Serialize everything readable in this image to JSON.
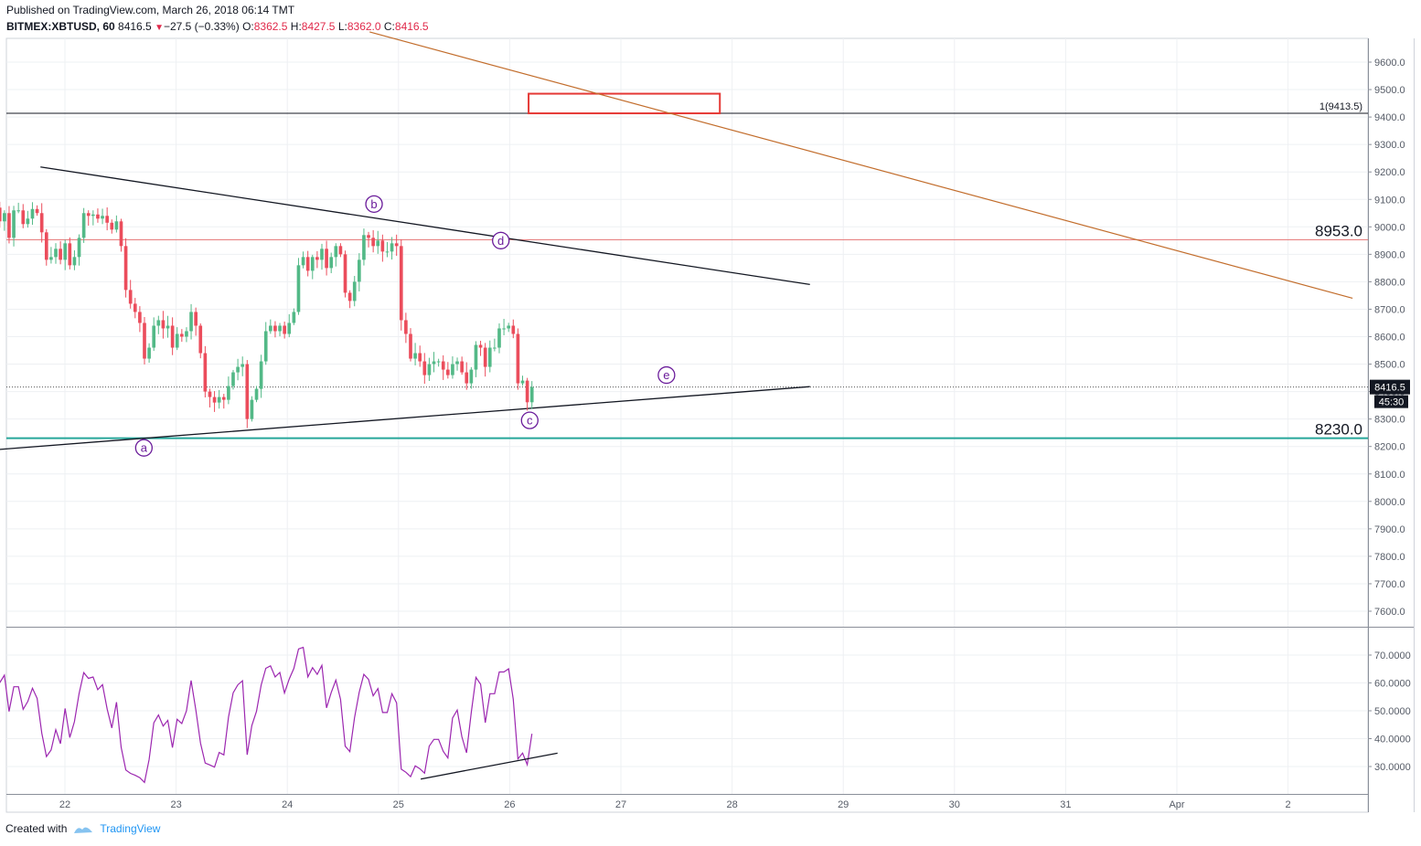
{
  "header": {
    "published": "Published on TradingView.com, March 26, 2018 06:14 TMT",
    "symbol": "BITMEX:XBTUSD, 60",
    "last": "8416.5",
    "change": "−27.5 (−0.33%)",
    "open_label": "O:",
    "open": "8362.5",
    "high_label": "H:",
    "high": "8427.5",
    "low_label": "L:",
    "low": "8362.0",
    "close_label": "C:",
    "close": "8416.5"
  },
  "footer": {
    "created_with": "Created with",
    "brand": "TradingView"
  },
  "colors": {
    "up": "#53b987",
    "down": "#eb4d5c",
    "rsi": "#9c27b0",
    "orange": "#c26d2c",
    "teal": "#26a69a",
    "hline_red": "#e57373",
    "box": "#e53935",
    "label": "#6a1b9a"
  },
  "chart_data": [
    {
      "type": "candlestick",
      "title": "BITMEX:XBTUSD, 60",
      "x_ticks": [
        "22",
        "23",
        "24",
        "25",
        "26",
        "27",
        "28",
        "29",
        "30",
        "31",
        "Apr",
        "2"
      ],
      "y_ticks": [
        "9600.0",
        "9500.0",
        "9400.0",
        "9300.0",
        "9200.0",
        "9100.0",
        "9000.0",
        "8900.0",
        "8800.0",
        "8700.0",
        "8600.0",
        "8500.0",
        "8400.0",
        "8300.0",
        "8200.0",
        "8100.0",
        "8000.0",
        "7900.0",
        "7800.0",
        "7700.0",
        "7600.0"
      ],
      "ylim": [
        7550,
        9670
      ],
      "price_tag": "8416.5",
      "countdown": "45:30",
      "hlines": [
        {
          "price": 9413.5,
          "label": "1(9413.5)",
          "color": "#131722"
        },
        {
          "price": 8953.0,
          "label": "8953.0",
          "color": "#e57373"
        },
        {
          "price": 8230.0,
          "label": "8230.0",
          "color": "#26a69a"
        }
      ],
      "wave_labels": [
        {
          "label": "a",
          "t": 22.71,
          "price": 8195
        },
        {
          "label": "b",
          "t": 24.78,
          "price": 9083
        },
        {
          "label": "c",
          "t": 26.18,
          "price": 8295
        },
        {
          "label": "d",
          "t": 25.92,
          "price": 8950
        },
        {
          "label": "e",
          "t": 27.41,
          "price": 8460
        }
      ],
      "trendlines": [
        {
          "from": [
            21.34,
            8187
          ],
          "to": [
            28.7,
            8418
          ],
          "color": "#131722"
        },
        {
          "from": [
            21.78,
            9218
          ],
          "to": [
            28.7,
            8790
          ],
          "color": "#131722"
        },
        {
          "from": [
            24.74,
            9710
          ],
          "to": [
            33.58,
            8740
          ],
          "color": "#c26d2c"
        }
      ],
      "target_box": {
        "t_from": 26.17,
        "t_to": 27.89,
        "price_from": 9413.5,
        "price_to": 9485
      },
      "closes": [
        8960,
        9070,
        9020,
        9050,
        8960,
        9060,
        9060,
        9010,
        9030,
        9065,
        9050,
        8980,
        8880,
        8890,
        8920,
        8880,
        8940,
        8860,
        8890,
        8960,
        9050,
        9040,
        9045,
        9030,
        9040,
        9015,
        8990,
        9020,
        8930,
        8770,
        8720,
        8690,
        8650,
        8520,
        8560,
        8640,
        8660,
        8630,
        8640,
        8560,
        8610,
        8600,
        8620,
        8690,
        8640,
        8540,
        8400,
        8380,
        8360,
        8380,
        8370,
        8420,
        8470,
        8490,
        8500,
        8300,
        8370,
        8410,
        8510,
        8620,
        8640,
        8620,
        8640,
        8610,
        8650,
        8690,
        8860,
        8890,
        8840,
        8890,
        8880,
        8920,
        8850,
        8890,
        8930,
        8900,
        8760,
        8730,
        8800,
        8880,
        8970,
        8960,
        8930,
        8950,
        8910,
        8910,
        8940,
        8930,
        8660,
        8610,
        8520,
        8540,
        8510,
        8460,
        8500,
        8510,
        8510,
        8480,
        8460,
        8500,
        8510,
        8470,
        8430,
        8480,
        8570,
        8560,
        8490,
        8560,
        8560,
        8630,
        8630,
        8640,
        8610,
        8430,
        8440,
        8361,
        8416.5
      ],
      "rsi": {
        "y_ticks": [
          "70.0000",
          "60.0000",
          "50.0000",
          "40.0000",
          "30.0000"
        ],
        "ylim": [
          20,
          80
        ],
        "color": "#9c27b0",
        "trendline": {
          "from": [
            25.2,
            25.5
          ],
          "to": [
            26.43,
            34.8
          ]
        }
      }
    }
  ]
}
